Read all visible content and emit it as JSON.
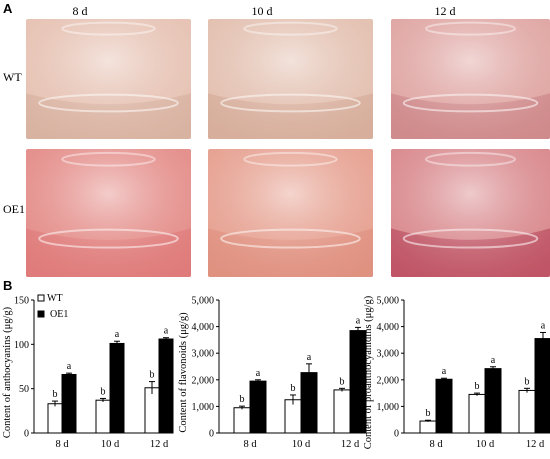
{
  "panels": {
    "a": "A",
    "b": "B"
  },
  "photos": {
    "columns": [
      "8 d",
      "10 d",
      "12 d"
    ],
    "rows": [
      {
        "label": "WT",
        "colors": [
          "#e6c2b3",
          "#e3c0b0",
          "#dfa6a3"
        ],
        "liquid": [
          "#d9b3a2",
          "#d7ae9c",
          "#cf8a8c"
        ]
      },
      {
        "label": "OE1",
        "colors": [
          "#e48e8a",
          "#e6a191",
          "#d98a8e"
        ],
        "liquid": [
          "#df7c7b",
          "#e09281",
          "#bf5566"
        ]
      }
    ]
  },
  "legend": {
    "wt": "WT",
    "oe1": "OE1"
  },
  "chart_data": [
    {
      "type": "bar",
      "ylabel": "Content of anthocyanins (μg/g)",
      "categories": [
        "8 d",
        "10 d",
        "12 d"
      ],
      "ylim": [
        0,
        150
      ],
      "yticks": [
        0,
        50,
        100,
        150
      ],
      "yticklabels": [
        "0",
        "50",
        "100",
        "150"
      ],
      "series": [
        {
          "name": "WT",
          "values": [
            33,
            37,
            51
          ],
          "errors": [
            3,
            2,
            7
          ],
          "letters": [
            "b",
            "b",
            "b"
          ]
        },
        {
          "name": "OE1",
          "values": [
            66,
            101,
            106
          ],
          "errors": [
            1.5,
            2.5,
            1.5
          ],
          "letters": [
            "a",
            "a",
            "a"
          ]
        }
      ]
    },
    {
      "type": "bar",
      "ylabel": "Content of flavonoids (μg/g)",
      "categories": [
        "8 d",
        "10 d",
        "12 d"
      ],
      "ylim": [
        0,
        5000
      ],
      "yticks": [
        0,
        1000,
        2000,
        3000,
        4000,
        5000
      ],
      "yticklabels": [
        "0",
        "1,000",
        "2,000",
        "3,000",
        "4,000",
        "5,000"
      ],
      "series": [
        {
          "name": "WT",
          "values": [
            950,
            1250,
            1620
          ],
          "errors": [
            60,
            180,
            60
          ],
          "letters": [
            "b",
            "b",
            "b"
          ]
        },
        {
          "name": "OE1",
          "values": [
            1950,
            2270,
            3850
          ],
          "errors": [
            50,
            330,
            120
          ],
          "letters": [
            "a",
            "a",
            "a"
          ]
        }
      ]
    },
    {
      "type": "bar",
      "ylabel": "Content of proanthocyanidins (μg/g)",
      "categories": [
        "8 d",
        "10 d",
        "12 d"
      ],
      "ylim": [
        0,
        5000
      ],
      "yticks": [
        0,
        1000,
        2000,
        3000,
        4000,
        5000
      ],
      "yticklabels": [
        "0",
        "1,000",
        "2,000",
        "3,000",
        "4,000",
        "5,000"
      ],
      "series": [
        {
          "name": "WT",
          "values": [
            450,
            1450,
            1600
          ],
          "errors": [
            30,
            50,
            80
          ],
          "letters": [
            "b",
            "b",
            "b"
          ]
        },
        {
          "name": "OE1",
          "values": [
            2020,
            2420,
            3550
          ],
          "errors": [
            40,
            70,
            230
          ],
          "letters": [
            "a",
            "a",
            "a"
          ]
        }
      ]
    }
  ]
}
